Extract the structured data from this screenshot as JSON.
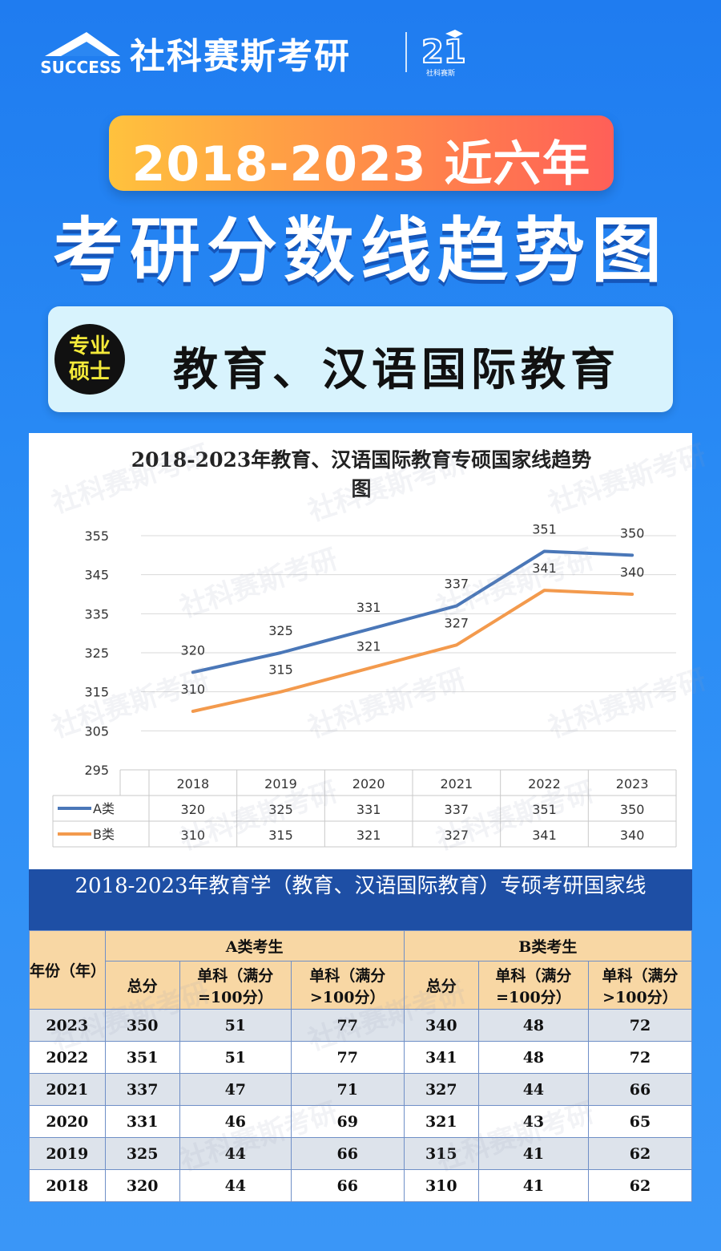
{
  "header": {
    "logo_text": "SUCCESS",
    "brand_name": "社科赛斯考研",
    "emblem_label": "社科赛斯"
  },
  "banner": {
    "years": "2018-2023 近六年",
    "title": "考研分数线趋势图"
  },
  "subject": {
    "badge_line1": "专业",
    "badge_line2": "硕士",
    "name": "教育、汉语国际教育"
  },
  "watermark": "社科赛斯考研",
  "colors": {
    "series_a": "#4a77b8",
    "series_b": "#f39a4d",
    "table_header_bg": "#1e4fa5",
    "table_head_cell": "#f8d7a4"
  },
  "chart_data": {
    "type": "line",
    "title_line1": "2018-2023年教育、汉语国际教育专硕国家线趋势",
    "title_line2": "图",
    "categories": [
      "2018",
      "2019",
      "2020",
      "2021",
      "2022",
      "2023"
    ],
    "series": [
      {
        "name": "A类",
        "values": [
          320,
          325,
          331,
          337,
          351,
          350
        ]
      },
      {
        "name": "B类",
        "values": [
          310,
          315,
          321,
          327,
          341,
          340
        ]
      }
    ],
    "yticks": [
      355,
      345,
      335,
      325,
      315,
      305,
      295
    ],
    "ylim": [
      295,
      355
    ],
    "grid": true,
    "legend": "data-table-below"
  },
  "table": {
    "title": "2018-2023年教育学（教育、汉语国际教育）专硕考研国家线",
    "year_header": "年份（年）",
    "group_a": "A类考生",
    "group_b": "B类考生",
    "col_total": "总分",
    "col_single_100": "单科（满分=100分）",
    "col_single_gt100": "单科（满分>100分）",
    "rows": [
      [
        "2023",
        "350",
        "51",
        "77",
        "340",
        "48",
        "72"
      ],
      [
        "2022",
        "351",
        "51",
        "77",
        "341",
        "48",
        "72"
      ],
      [
        "2021",
        "337",
        "47",
        "71",
        "327",
        "44",
        "66"
      ],
      [
        "2020",
        "331",
        "46",
        "69",
        "321",
        "43",
        "65"
      ],
      [
        "2019",
        "325",
        "44",
        "66",
        "315",
        "41",
        "62"
      ],
      [
        "2018",
        "320",
        "44",
        "66",
        "310",
        "41",
        "62"
      ]
    ]
  }
}
